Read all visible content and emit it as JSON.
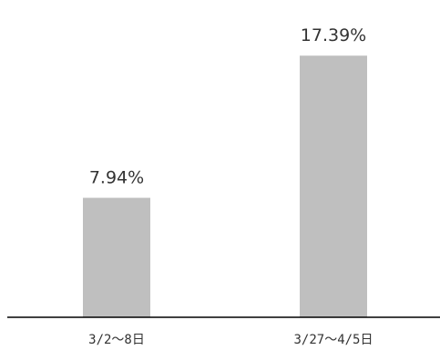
{
  "chart_data": {
    "type": "bar",
    "title": "",
    "xlabel": "",
    "ylabel": "",
    "categories": [
      "3/2〜8日",
      "3/27〜4/5日"
    ],
    "values": [
      7.94,
      17.39
    ],
    "value_labels": [
      "7.94%",
      "17.39%"
    ],
    "ylim": [
      0,
      20
    ],
    "grid": false,
    "legend": "none",
    "colors": {
      "bar": "#bfbfbf",
      "axis": "#000000",
      "text": "#333333"
    }
  }
}
